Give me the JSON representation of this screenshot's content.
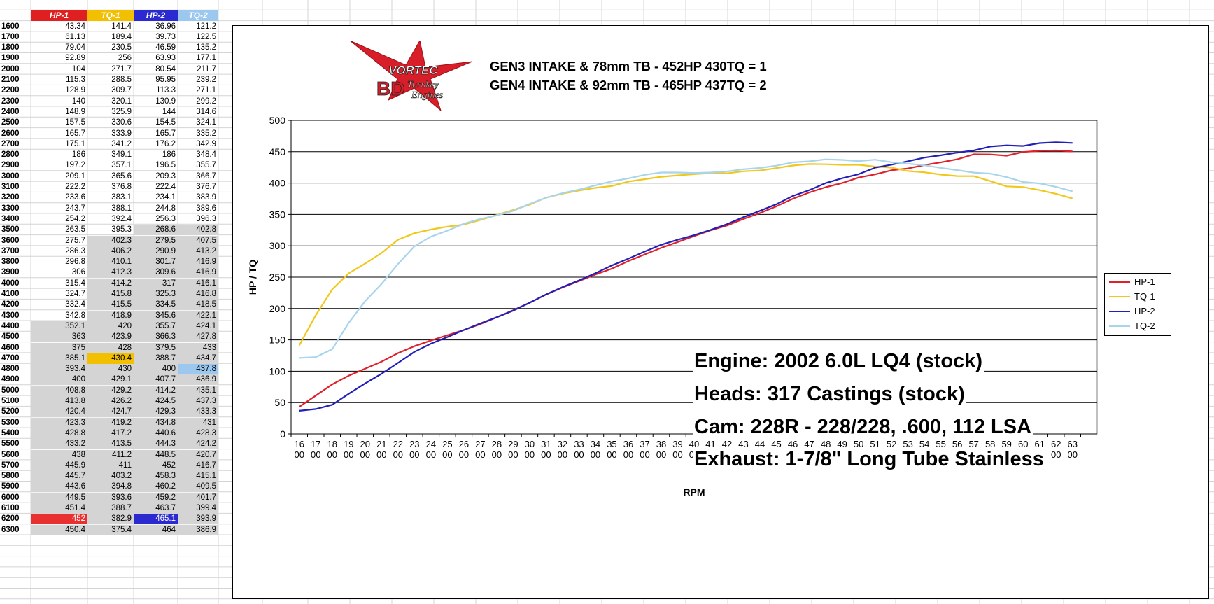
{
  "spreadsheet": {
    "headers": [
      "HP-1",
      "TQ-1",
      "HP-2",
      "TQ-2"
    ],
    "header_colors": [
      "#e02020",
      "#f2c000",
      "#2a2ad0",
      "#9cc8f0"
    ],
    "rows": [
      [
        "1600",
        "43.34",
        "141.4",
        "36.96",
        "121.2"
      ],
      [
        "1700",
        "61.13",
        "189.4",
        "39.73",
        "122.5"
      ],
      [
        "1800",
        "79.04",
        "230.5",
        "46.59",
        "135.2"
      ],
      [
        "1900",
        "92.89",
        "256",
        "63.93",
        "177.1"
      ],
      [
        "2000",
        "104",
        "271.7",
        "80.54",
        "211.7"
      ],
      [
        "2100",
        "115.3",
        "288.5",
        "95.95",
        "239.2"
      ],
      [
        "2200",
        "128.9",
        "309.7",
        "113.3",
        "271.1"
      ],
      [
        "2300",
        "140",
        "320.1",
        "130.9",
        "299.2"
      ],
      [
        "2400",
        "148.9",
        "325.9",
        "144",
        "314.6"
      ],
      [
        "2500",
        "157.5",
        "330.6",
        "154.5",
        "324.1"
      ],
      [
        "2600",
        "165.7",
        "333.9",
        "165.7",
        "335.2"
      ],
      [
        "2700",
        "175.1",
        "341.2",
        "176.2",
        "342.9"
      ],
      [
        "2800",
        "186",
        "349.1",
        "186",
        "348.4"
      ],
      [
        "2900",
        "197.2",
        "357.1",
        "196.5",
        "355.7"
      ],
      [
        "3000",
        "209.1",
        "365.6",
        "209.3",
        "366.7"
      ],
      [
        "3100",
        "222.2",
        "376.8",
        "222.4",
        "376.7"
      ],
      [
        "3200",
        "233.6",
        "383.1",
        "234.1",
        "383.9"
      ],
      [
        "3300",
        "243.7",
        "388.1",
        "244.8",
        "389.6"
      ],
      [
        "3400",
        "254.2",
        "392.4",
        "256.3",
        "396.3"
      ],
      [
        "3500",
        "263.5",
        "395.3",
        "268.6",
        "402.8"
      ],
      [
        "3600",
        "275.7",
        "402.3",
        "279.5",
        "407.5"
      ],
      [
        "3700",
        "286.3",
        "406.2",
        "290.9",
        "413.2"
      ],
      [
        "3800",
        "296.8",
        "410.1",
        "301.7",
        "416.9"
      ],
      [
        "3900",
        "306",
        "412.3",
        "309.6",
        "416.9"
      ],
      [
        "4000",
        "315.4",
        "414.2",
        "317",
        "416.1"
      ],
      [
        "4100",
        "324.7",
        "415.8",
        "325.3",
        "416.8"
      ],
      [
        "4200",
        "332.4",
        "415.5",
        "334.5",
        "418.5"
      ],
      [
        "4300",
        "342.8",
        "418.9",
        "345.6",
        "422.1"
      ],
      [
        "4400",
        "352.1",
        "420",
        "355.7",
        "424.1"
      ],
      [
        "4500",
        "363",
        "423.9",
        "366.3",
        "427.8"
      ],
      [
        "4600",
        "375",
        "428",
        "379.5",
        "433"
      ],
      [
        "4700",
        "385.1",
        "430.4",
        "388.7",
        "434.7"
      ],
      [
        "4800",
        "393.4",
        "430",
        "400",
        "437.8"
      ],
      [
        "4900",
        "400",
        "429.1",
        "407.7",
        "436.9"
      ],
      [
        "5000",
        "408.8",
        "429.2",
        "414.2",
        "435.1"
      ],
      [
        "5100",
        "413.8",
        "426.2",
        "424.5",
        "437.3"
      ],
      [
        "5200",
        "420.4",
        "424.7",
        "429.3",
        "433.3"
      ],
      [
        "5300",
        "423.3",
        "419.2",
        "434.8",
        "431"
      ],
      [
        "5400",
        "428.8",
        "417.2",
        "440.6",
        "428.3"
      ],
      [
        "5500",
        "433.2",
        "413.5",
        "444.3",
        "424.2"
      ],
      [
        "5600",
        "438",
        "411.2",
        "448.5",
        "420.7"
      ],
      [
        "5700",
        "445.9",
        "411",
        "452",
        "416.7"
      ],
      [
        "5800",
        "445.7",
        "403.2",
        "458.3",
        "415.1"
      ],
      [
        "5900",
        "443.6",
        "394.8",
        "460.2",
        "409.5"
      ],
      [
        "6000",
        "449.5",
        "393.6",
        "459.2",
        "401.7"
      ],
      [
        "6100",
        "451.4",
        "388.7",
        "463.7",
        "399.4"
      ],
      [
        "6200",
        "452",
        "382.9",
        "465.1",
        "393.9"
      ],
      [
        "6300",
        "450.4",
        "375.4",
        "464",
        "386.9"
      ]
    ]
  },
  "chart_data": {
    "type": "line",
    "title_lines": [
      "GEN3 INTAKE & 78mm TB - 452HP 430TQ = 1",
      "GEN4 INTAKE & 92mm TB - 465HP 437TQ = 2"
    ],
    "xlabel": "RPM",
    "ylabel": "HP / TQ",
    "ylim": [
      0,
      500
    ],
    "yticks": [
      0,
      50,
      100,
      150,
      200,
      250,
      300,
      350,
      400,
      450,
      500
    ],
    "x_tick_top": [
      "16",
      "17",
      "18",
      "19",
      "20",
      "21",
      "22",
      "23",
      "24",
      "25",
      "26",
      "27",
      "28",
      "29",
      "30",
      "31",
      "32",
      "33",
      "34",
      "35",
      "36",
      "37",
      "38",
      "39",
      "40",
      "41",
      "42",
      "43",
      "44",
      "45",
      "46",
      "47",
      "48",
      "49",
      "50",
      "51",
      "52",
      "53",
      "54",
      "55",
      "56",
      "57",
      "58",
      "59",
      "60",
      "61",
      "62",
      "63"
    ],
    "x_tick_bottom": "00",
    "grid": "horizontal",
    "legend_position": "right",
    "series": [
      {
        "name": "HP-1",
        "color": "#e0202a",
        "values": [
          43.34,
          61.13,
          79.04,
          92.89,
          104,
          115.3,
          128.9,
          140,
          148.9,
          157.5,
          165.7,
          175.1,
          186,
          197.2,
          209.1,
          222.2,
          233.6,
          243.7,
          254.2,
          263.5,
          275.7,
          286.3,
          296.8,
          306,
          315.4,
          324.7,
          332.4,
          342.8,
          352.1,
          363,
          375,
          385.1,
          393.4,
          400,
          408.8,
          413.8,
          420.4,
          423.3,
          428.8,
          433.2,
          438,
          445.9,
          445.7,
          443.6,
          449.5,
          451.4,
          452,
          450.4
        ]
      },
      {
        "name": "TQ-1",
        "color": "#f0c81c",
        "values": [
          141.4,
          189.4,
          230.5,
          256,
          271.7,
          288.5,
          309.7,
          320.1,
          325.9,
          330.6,
          333.9,
          341.2,
          349.1,
          357.1,
          365.6,
          376.8,
          383.1,
          388.1,
          392.4,
          395.3,
          402.3,
          406.2,
          410.1,
          412.3,
          414.2,
          415.8,
          415.5,
          418.9,
          420,
          423.9,
          428,
          430.4,
          430,
          429.1,
          429.2,
          426.2,
          424.7,
          419.2,
          417.2,
          413.5,
          411.2,
          411,
          403.2,
          394.8,
          393.6,
          388.7,
          382.9,
          375.4
        ]
      },
      {
        "name": "HP-2",
        "color": "#2020b8",
        "values": [
          36.96,
          39.73,
          46.59,
          63.93,
          80.54,
          95.95,
          113.3,
          130.9,
          144,
          154.5,
          165.7,
          176.2,
          186,
          196.5,
          209.3,
          222.4,
          234.1,
          244.8,
          256.3,
          268.6,
          279.5,
          290.9,
          301.7,
          309.6,
          317,
          325.3,
          334.5,
          345.6,
          355.7,
          366.3,
          379.5,
          388.7,
          400,
          407.7,
          414.2,
          424.5,
          429.3,
          434.8,
          440.6,
          444.3,
          448.5,
          452,
          458.3,
          460.2,
          459.2,
          463.7,
          465.1,
          464
        ]
      },
      {
        "name": "TQ-2",
        "color": "#a8d4ec",
        "values": [
          121.2,
          122.5,
          135.2,
          177.1,
          211.7,
          239.2,
          271.1,
          299.2,
          314.6,
          324.1,
          335.2,
          342.9,
          348.4,
          355.7,
          366.7,
          376.7,
          383.9,
          389.6,
          396.3,
          402.8,
          407.5,
          413.2,
          416.9,
          416.9,
          416.1,
          416.8,
          418.5,
          422.1,
          424.1,
          427.8,
          433,
          434.7,
          437.8,
          436.9,
          435.1,
          437.3,
          433.3,
          431,
          428.3,
          424.2,
          420.7,
          416.7,
          415.1,
          409.5,
          401.7,
          399.4,
          393.9,
          386.9
        ]
      }
    ]
  },
  "annotations": [
    "Engine: 2002 6.0L LQ4 (stock)",
    "Heads: 317 Castings (stock)",
    "Cam: 228R - 228/228, .600, 112 LSA",
    "Exhaust: 1-7/8\" Long Tube Stainless"
  ],
  "logo": {
    "brand_top": "VORTEC",
    "brand_initials": "BD",
    "brand_line1": "Turnkey",
    "brand_line2": "Engines"
  }
}
